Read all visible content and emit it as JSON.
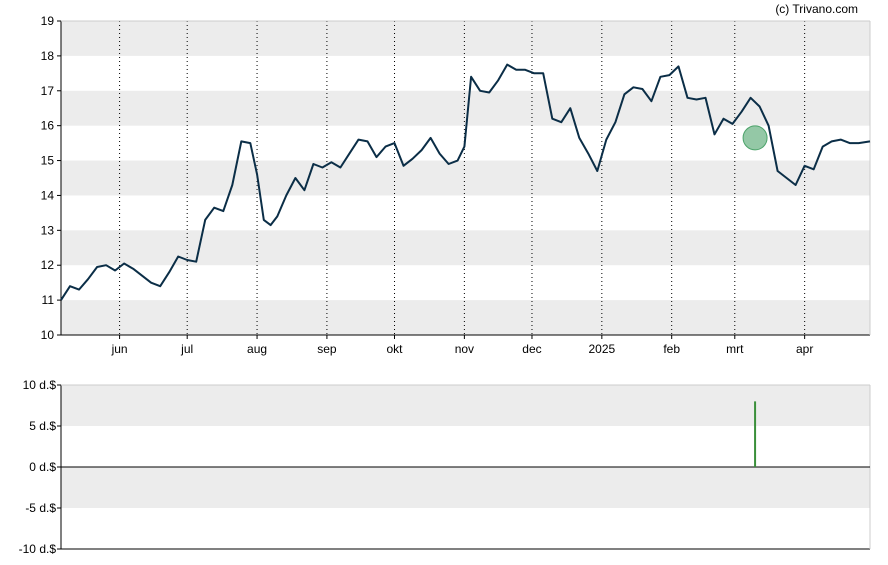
{
  "credit": "(c) Trivano.com",
  "colors": {
    "band": "#ececec",
    "line": "#0b2e47",
    "marker": "#4ca36a",
    "dividend": "#3a8f3a",
    "axis": "#000000"
  },
  "chart_data": [
    {
      "type": "line",
      "title": "",
      "xlabel": "",
      "ylabel": "",
      "ylim": [
        10,
        19
      ],
      "yticks": [
        "10",
        "11",
        "12",
        "13",
        "14",
        "15",
        "16",
        "17",
        "18",
        "19"
      ],
      "xlabels": [
        "jun",
        "jul",
        "aug",
        "sep",
        "okt",
        "nov",
        "dec",
        "2025",
        "feb",
        "mrt",
        "apr"
      ],
      "xlabel_dates": [
        "2024-06-01",
        "2024-07-01",
        "2024-08-01",
        "2024-09-01",
        "2024-10-01",
        "2024-11-01",
        "2024-12-01",
        "2025-01-01",
        "2025-02-01",
        "2025-03-01",
        "2025-04-01"
      ],
      "xrange": [
        "2024-05-06",
        "2025-04-30"
      ],
      "grid": "vertical dotted at month starts, horizontal alternating bands",
      "series": [
        {
          "x": [
            "2024-05-06",
            "2024-05-10",
            "2024-05-14",
            "2024-05-18",
            "2024-05-22",
            "2024-05-26",
            "2024-05-30",
            "2024-06-03",
            "2024-06-07",
            "2024-06-11",
            "2024-06-15",
            "2024-06-19",
            "2024-06-23",
            "2024-06-27",
            "2024-07-01",
            "2024-07-05",
            "2024-07-09",
            "2024-07-13",
            "2024-07-17",
            "2024-07-21",
            "2024-07-25",
            "2024-07-29",
            "2024-08-01",
            "2024-08-04",
            "2024-08-07",
            "2024-08-10",
            "2024-08-14",
            "2024-08-18",
            "2024-08-22",
            "2024-08-26",
            "2024-08-30",
            "2024-09-03",
            "2024-09-07",
            "2024-09-11",
            "2024-09-15",
            "2024-09-19",
            "2024-09-23",
            "2024-09-27",
            "2024-10-01",
            "2024-10-05",
            "2024-10-09",
            "2024-10-13",
            "2024-10-17",
            "2024-10-21",
            "2024-10-25",
            "2024-10-29",
            "2024-11-01",
            "2024-11-04",
            "2024-11-08",
            "2024-11-12",
            "2024-11-16",
            "2024-11-20",
            "2024-11-24",
            "2024-11-28",
            "2024-12-02",
            "2024-12-06",
            "2024-12-10",
            "2024-12-14",
            "2024-12-18",
            "2024-12-22",
            "2024-12-26",
            "2024-12-30",
            "2025-01-03",
            "2025-01-07",
            "2025-01-11",
            "2025-01-15",
            "2025-01-19",
            "2025-01-23",
            "2025-01-27",
            "2025-01-31",
            "2025-02-04",
            "2025-02-08",
            "2025-02-12",
            "2025-02-16",
            "2025-02-20",
            "2025-02-24",
            "2025-02-28",
            "2025-03-04",
            "2025-03-08",
            "2025-03-12",
            "2025-03-16",
            "2025-03-20",
            "2025-03-24",
            "2025-03-28",
            "2025-04-01",
            "2025-04-05",
            "2025-04-09",
            "2025-04-13",
            "2025-04-17",
            "2025-04-21",
            "2025-04-25",
            "2025-04-30"
          ],
          "values": [
            11.0,
            11.4,
            11.3,
            11.6,
            11.95,
            12.0,
            11.85,
            12.05,
            11.9,
            11.7,
            11.5,
            11.4,
            11.8,
            12.25,
            12.15,
            12.1,
            13.3,
            13.65,
            13.55,
            14.3,
            15.55,
            15.5,
            14.6,
            13.3,
            13.15,
            13.4,
            14.0,
            14.5,
            14.15,
            14.9,
            14.8,
            14.95,
            14.8,
            15.2,
            15.6,
            15.55,
            15.1,
            15.4,
            15.5,
            14.85,
            15.05,
            15.3,
            15.65,
            15.2,
            14.9,
            15.0,
            15.4,
            17.4,
            17.0,
            16.95,
            17.3,
            17.75,
            17.6,
            17.6,
            17.5,
            17.5,
            16.2,
            16.1,
            16.5,
            15.65,
            15.2,
            14.7,
            15.6,
            16.1,
            16.9,
            17.1,
            17.05,
            16.7,
            17.4,
            17.45,
            17.7,
            16.8,
            16.75,
            16.8,
            15.75,
            16.2,
            16.05,
            16.4,
            16.8,
            16.55,
            16.0,
            14.7,
            14.5,
            14.3,
            14.85,
            14.75,
            15.4,
            15.55,
            15.6,
            15.5,
            15.5,
            15.55
          ]
        }
      ],
      "annotations": [
        {
          "type": "dividend-marker",
          "x": "2025-03-10",
          "y": 15.65
        }
      ]
    },
    {
      "type": "bar",
      "title": "",
      "ylim": [
        -10,
        10
      ],
      "yticks": [
        "10 d.$",
        "5 d.$",
        "0 d.$",
        "-5 d.$",
        "-10 d.$"
      ],
      "series": [
        {
          "x": [
            "2025-03-10"
          ],
          "values": [
            8
          ]
        }
      ]
    }
  ]
}
